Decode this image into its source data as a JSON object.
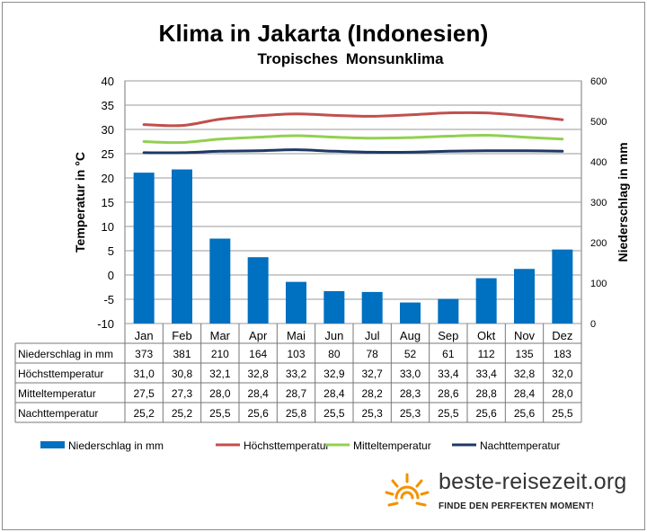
{
  "chart_data": {
    "type": "bar",
    "title": "Klima in Jakarta (Indonesien)",
    "subtitle": "Tropisches  Monsunklima",
    "categories": [
      "Jan",
      "Feb",
      "Mar",
      "Apr",
      "Mai",
      "Jun",
      "Jul",
      "Aug",
      "Sep",
      "Okt",
      "Nov",
      "Dez"
    ],
    "ylabel_left": "Temperatur in °C",
    "ylabel_right": "Niederschlag in mm",
    "ylim_left": [
      -10,
      40
    ],
    "yticks_left": [
      -10,
      -5,
      0,
      5,
      10,
      15,
      20,
      25,
      30,
      35,
      40
    ],
    "ylim_right": [
      0,
      600
    ],
    "yticks_right": [
      0,
      100,
      200,
      300,
      400,
      500,
      600
    ],
    "grid": true,
    "legend_position": "bottom",
    "series": [
      {
        "name": "Niederschlag in mm",
        "type": "bar",
        "axis": "right",
        "color": "#0070C0",
        "values": [
          373,
          381,
          210,
          164,
          103,
          80,
          78,
          52,
          61,
          112,
          135,
          183
        ]
      },
      {
        "name": "Höchsttemperatur",
        "type": "line",
        "axis": "left",
        "color": "#C0504D",
        "values": [
          31.0,
          30.8,
          32.1,
          32.8,
          33.2,
          32.9,
          32.7,
          33.0,
          33.4,
          33.4,
          32.8,
          32.0
        ]
      },
      {
        "name": "Mitteltemperatur",
        "type": "line",
        "axis": "left",
        "color": "#92D050",
        "values": [
          27.5,
          27.3,
          28.0,
          28.4,
          28.7,
          28.4,
          28.2,
          28.3,
          28.6,
          28.8,
          28.4,
          28.0
        ]
      },
      {
        "name": "Nachttemperatur",
        "type": "line",
        "axis": "left",
        "color": "#1F3864",
        "values": [
          25.2,
          25.2,
          25.5,
          25.6,
          25.8,
          25.5,
          25.3,
          25.3,
          25.5,
          25.6,
          25.6,
          25.5
        ]
      }
    ],
    "table": [
      {
        "label": "Niederschlag in mm",
        "cells": [
          "373",
          "381",
          "210",
          "164",
          "103",
          "80",
          "78",
          "52",
          "61",
          "112",
          "135",
          "183"
        ]
      },
      {
        "label": "Höchsttemperatur",
        "cells": [
          "31,0",
          "30,8",
          "32,1",
          "32,8",
          "33,2",
          "32,9",
          "32,7",
          "33,0",
          "33,4",
          "33,4",
          "32,8",
          "32,0"
        ]
      },
      {
        "label": "Mitteltemperatur",
        "cells": [
          "27,5",
          "27,3",
          "28,0",
          "28,4",
          "28,7",
          "28,4",
          "28,2",
          "28,3",
          "28,6",
          "28,8",
          "28,4",
          "28,0"
        ]
      },
      {
        "label": "Nachttemperatur",
        "cells": [
          "25,2",
          "25,2",
          "25,5",
          "25,6",
          "25,8",
          "25,5",
          "25,3",
          "25,3",
          "25,5",
          "25,6",
          "25,6",
          "25,5"
        ]
      }
    ]
  },
  "branding": {
    "name": "beste-reisezeit.org",
    "slogan": "FINDE DEN PERFEKTEN MOMENT!",
    "logo_icon": "sun-icon",
    "logo_color": "#F39200"
  }
}
